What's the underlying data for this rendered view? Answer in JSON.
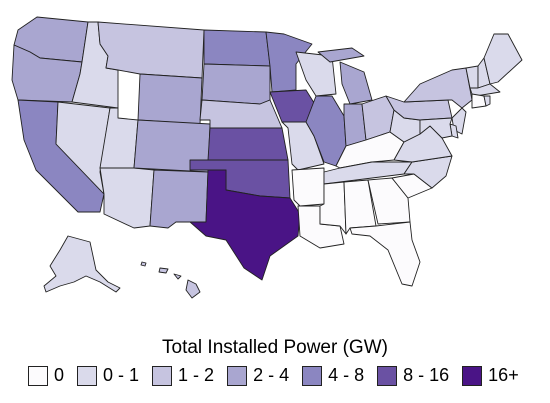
{
  "legend": {
    "title": "Total Installed Power (GW)",
    "items": [
      {
        "label": "0",
        "color": "#fcfbfd"
      },
      {
        "label": "0 - 1",
        "color": "#dadaeb"
      },
      {
        "label": "1 - 2",
        "color": "#c6c4e0"
      },
      {
        "label": "2 - 4",
        "color": "#a9a6d0"
      },
      {
        "label": "4 - 8",
        "color": "#8b86c1"
      },
      {
        "label": "8 - 16",
        "color": "#6a51a3"
      },
      {
        "label": "16+",
        "color": "#4a1486"
      }
    ]
  },
  "states": [
    {
      "code": "WA",
      "bin": "2 - 4"
    },
    {
      "code": "OR",
      "bin": "2 - 4"
    },
    {
      "code": "CA",
      "bin": "4 - 8"
    },
    {
      "code": "ID",
      "bin": "0 - 1"
    },
    {
      "code": "NV",
      "bin": "0 - 1"
    },
    {
      "code": "UT",
      "bin": "0 - 1"
    },
    {
      "code": "AZ",
      "bin": "0 - 1"
    },
    {
      "code": "MT",
      "bin": "1 - 2"
    },
    {
      "code": "WY",
      "bin": "2 - 4"
    },
    {
      "code": "CO",
      "bin": "2 - 4"
    },
    {
      "code": "NM",
      "bin": "2 - 4"
    },
    {
      "code": "ND",
      "bin": "4 - 8"
    },
    {
      "code": "SD",
      "bin": "2 - 4"
    },
    {
      "code": "NE",
      "bin": "1 - 2"
    },
    {
      "code": "KS",
      "bin": "8 - 16"
    },
    {
      "code": "OK",
      "bin": "8 - 16"
    },
    {
      "code": "TX",
      "bin": "16+"
    },
    {
      "code": "MN",
      "bin": "4 - 8"
    },
    {
      "code": "IA",
      "bin": "8 - 16"
    },
    {
      "code": "MO",
      "bin": "0 - 1"
    },
    {
      "code": "AR",
      "bin": "0"
    },
    {
      "code": "LA",
      "bin": "0"
    },
    {
      "code": "WI",
      "bin": "0 - 1"
    },
    {
      "code": "IL",
      "bin": "4 - 8"
    },
    {
      "code": "MI",
      "bin": "2 - 4"
    },
    {
      "code": "IN",
      "bin": "2 - 4"
    },
    {
      "code": "OH",
      "bin": "1 - 2"
    },
    {
      "code": "KY",
      "bin": "0"
    },
    {
      "code": "TN",
      "bin": "0 - 1"
    },
    {
      "code": "MS",
      "bin": "0"
    },
    {
      "code": "AL",
      "bin": "0"
    },
    {
      "code": "GA",
      "bin": "0"
    },
    {
      "code": "FL",
      "bin": "0"
    },
    {
      "code": "SC",
      "bin": "0"
    },
    {
      "code": "NC",
      "bin": "0 - 1"
    },
    {
      "code": "VA",
      "bin": "0 - 1"
    },
    {
      "code": "WV",
      "bin": "0 - 1"
    },
    {
      "code": "PA",
      "bin": "1 - 2"
    },
    {
      "code": "NY",
      "bin": "1 - 2"
    },
    {
      "code": "VT",
      "bin": "0 - 1"
    },
    {
      "code": "NH",
      "bin": "0 - 1"
    },
    {
      "code": "ME",
      "bin": "0 - 1"
    },
    {
      "code": "MA",
      "bin": "0 - 1"
    },
    {
      "code": "CT",
      "bin": "0"
    },
    {
      "code": "RI",
      "bin": "0 - 1"
    },
    {
      "code": "NJ",
      "bin": "0 - 1"
    },
    {
      "code": "DE",
      "bin": "0 - 1"
    },
    {
      "code": "MD",
      "bin": "0 - 1"
    },
    {
      "code": "AK",
      "bin": "0 - 1"
    },
    {
      "code": "HI",
      "bin": "1 - 2"
    }
  ]
}
